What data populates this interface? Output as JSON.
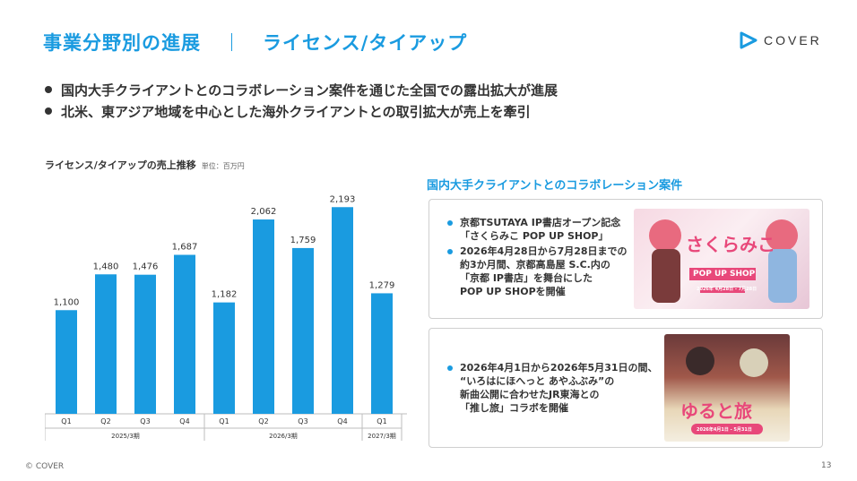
{
  "header": {
    "title_left": "事業分野別の進展",
    "title_right": "ライセンス/タイアップ",
    "logo_text": "COVER"
  },
  "bullets": [
    "国内大手クライアントとのコラボレーション案件を通じた全国での露出拡大が進展",
    "北米、東アジア地域を中心とした海外クライアントとの取引拡大が売上を牽引"
  ],
  "chart_title": "ライセンス/タイアップの売上推移",
  "chart_unit": "単位：百万円",
  "chart_data": {
    "type": "bar",
    "categories": [
      "Q1",
      "Q2",
      "Q3",
      "Q4",
      "Q1",
      "Q2",
      "Q3",
      "Q4",
      "Q1"
    ],
    "values": [
      1100,
      1480,
      1476,
      1687,
      1182,
      2062,
      1759,
      2193,
      1279
    ],
    "value_labels": [
      "1,100",
      "1,480",
      "1,476",
      "1,687",
      "1,182",
      "2,062",
      "1,759",
      "2,193",
      "1,279"
    ],
    "groups": [
      {
        "label": "2025/3期",
        "count": 4
      },
      {
        "label": "2026/3期",
        "count": 4
      },
      {
        "label": "2027/3期",
        "count": 1
      }
    ],
    "ylim": [
      0,
      2300
    ],
    "bar_color": "#1a9be0"
  },
  "collab": {
    "title": "国内大手クライアントとのコラボレーション案件",
    "card1": {
      "items": [
        [
          "京都TSUTAYA IP書店オープン記念",
          "「さくらみこ POP UP SHOP」"
        ],
        [
          "2026年4月28日から7月28日までの",
          "約3か月間、京都高島屋 S.C.内の",
          "「京都 IP書店」を舞台にした",
          "POP UP SHOPを開催"
        ]
      ],
      "image_text": "さくらみこ",
      "image_sub": "POP UP SHOP",
      "image_date": "2026年 4月28日 - 7月28日"
    },
    "card2": {
      "items": [
        [
          "2026年4月1日から2026年5月31日の間、",
          "“いろはにほへっと あやふぶみ”の",
          "新曲公開に合わせたJR東海との",
          "「推し旅」コラボを開催"
        ]
      ],
      "image_text": "ゆると旅",
      "image_date": "2026年4月1日 - 5月31日"
    }
  },
  "footer": {
    "copyright": "© COVER",
    "page": "13"
  }
}
